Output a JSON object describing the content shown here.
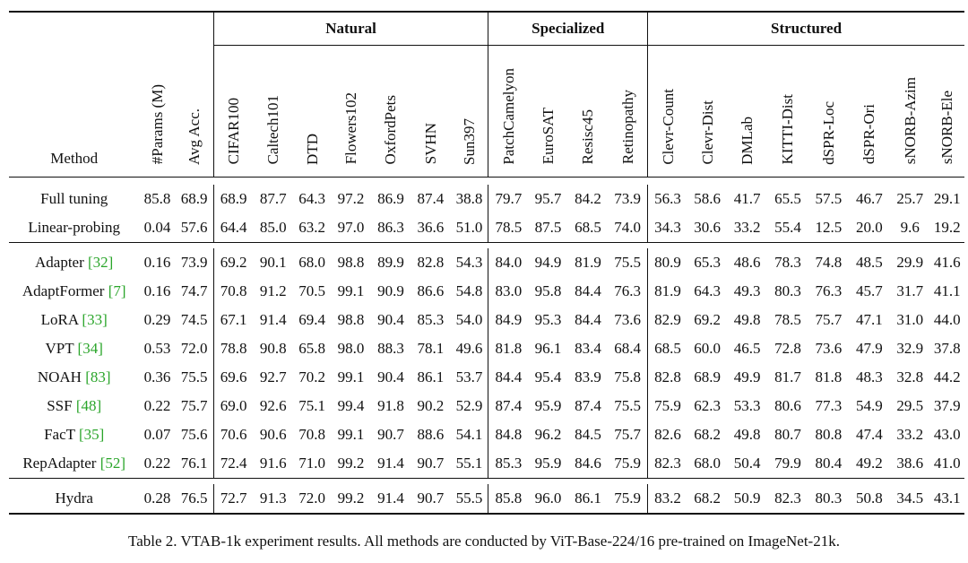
{
  "groups": {
    "natural": "Natural",
    "specialized": "Specialized",
    "structured": "Structured"
  },
  "columns": {
    "method": "Method",
    "params": "#Params (M)",
    "avg": "Avg Acc.",
    "datasets": [
      "CIFAR100",
      "Caltech101",
      "DTD",
      "Flowers102",
      "OxfordPets",
      "SVHN",
      "Sun397",
      "PatchCamelyon",
      "EuroSAT",
      "Resisc45",
      "Retinopathy",
      "Clevr-Count",
      "Clevr-Dist",
      "DMLab",
      "KITTI-Dist",
      "dSPR-Loc",
      "dSPR-Ori",
      "sNORB-Azim",
      "sNORB-Ele"
    ]
  },
  "baselines": [
    {
      "name": "Full tuning",
      "cite": "",
      "cells": [
        "85.8",
        "68.9",
        "68.9",
        "87.7",
        "64.3",
        "97.2",
        "86.9",
        "87.4",
        "38.8",
        "79.7",
        "95.7",
        "84.2",
        "73.9",
        "56.3",
        "58.6",
        "41.7",
        "65.5",
        "57.5",
        "46.7",
        "25.7",
        "29.1"
      ],
      "bold": []
    },
    {
      "name": "Linear-probing",
      "cite": "",
      "cells": [
        "0.04",
        "57.6",
        "64.4",
        "85.0",
        "63.2",
        "97.0",
        "86.3",
        "36.6",
        "51.0",
        "78.5",
        "87.5",
        "68.5",
        "74.0",
        "34.3",
        "30.6",
        "33.2",
        "55.4",
        "12.5",
        "20.0",
        "9.6",
        "19.2"
      ],
      "bold": []
    }
  ],
  "methods": [
    {
      "name": "Adapter ",
      "cite": "[32]",
      "cells": [
        "0.16",
        "73.9",
        "69.2",
        "90.1",
        "68.0",
        "98.8",
        "89.9",
        "82.8",
        "54.3",
        "84.0",
        "94.9",
        "81.9",
        "75.5",
        "80.9",
        "65.3",
        "48.6",
        "78.3",
        "74.8",
        "48.5",
        "29.9",
        "41.6"
      ],
      "bold": []
    },
    {
      "name": "AdaptFormer ",
      "cite": "[7]",
      "cells": [
        "0.16",
        "74.7",
        "70.8",
        "91.2",
        "70.5",
        "99.1",
        "90.9",
        "86.6",
        "54.8",
        "83.0",
        "95.8",
        "84.4",
        "76.3",
        "81.9",
        "64.3",
        "49.3",
        "80.3",
        "76.3",
        "45.7",
        "31.7",
        "41.1"
      ],
      "bold": [
        12
      ]
    },
    {
      "name": "LoRA ",
      "cite": "[33]",
      "cells": [
        "0.29",
        "74.5",
        "67.1",
        "91.4",
        "69.4",
        "98.8",
        "90.4",
        "85.3",
        "54.0",
        "84.9",
        "95.3",
        "84.4",
        "73.6",
        "82.9",
        "69.2",
        "49.8",
        "78.5",
        "75.7",
        "47.1",
        "31.0",
        "44.0"
      ],
      "bold": [
        14
      ]
    },
    {
      "name": "VPT ",
      "cite": "[34]",
      "cells": [
        "0.53",
        "72.0",
        "78.8",
        "90.8",
        "65.8",
        "98.0",
        "88.3",
        "78.1",
        "49.6",
        "81.8",
        "96.1",
        "83.4",
        "68.4",
        "68.5",
        "60.0",
        "46.5",
        "72.8",
        "73.6",
        "47.9",
        "32.9",
        "37.8"
      ],
      "bold": [
        2
      ]
    },
    {
      "name": "NOAH ",
      "cite": "[83]",
      "cells": [
        "0.36",
        "75.5",
        "69.6",
        "92.7",
        "70.2",
        "99.1",
        "90.4",
        "86.1",
        "53.7",
        "84.4",
        "95.4",
        "83.9",
        "75.8",
        "82.8",
        "68.9",
        "49.9",
        "81.7",
        "81.8",
        "48.3",
        "32.8",
        "44.2"
      ],
      "bold": [
        3,
        17,
        20
      ]
    },
    {
      "name": "SSF ",
      "cite": "[48]",
      "cells": [
        "0.22",
        "75.7",
        "69.0",
        "92.6",
        "75.1",
        "99.4",
        "91.8",
        "90.2",
        "52.9",
        "87.4",
        "95.9",
        "87.4",
        "75.5",
        "75.9",
        "62.3",
        "53.3",
        "80.6",
        "77.3",
        "54.9",
        "29.5",
        "37.9"
      ],
      "bold": [
        4,
        5,
        6,
        9,
        11,
        15,
        18
      ]
    },
    {
      "name": "FacT ",
      "cite": "[35]",
      "cells": [
        "0.07",
        "75.6",
        "70.6",
        "90.6",
        "70.8",
        "99.1",
        "90.7",
        "88.6",
        "54.1",
        "84.8",
        "96.2",
        "84.5",
        "75.7",
        "82.6",
        "68.2",
        "49.8",
        "80.7",
        "80.8",
        "47.4",
        "33.2",
        "43.0"
      ],
      "bold": [
        10
      ]
    },
    {
      "name": "RepAdapter ",
      "cite": "[52]",
      "cells": [
        "0.22",
        "76.1",
        "72.4",
        "91.6",
        "71.0",
        "99.2",
        "91.4",
        "90.7",
        "55.1",
        "85.3",
        "95.9",
        "84.6",
        "75.9",
        "82.3",
        "68.0",
        "50.4",
        "79.9",
        "80.4",
        "49.2",
        "38.6",
        "41.0"
      ],
      "bold": [
        7,
        19
      ]
    }
  ],
  "ours": [
    {
      "name": "Hydra",
      "cite": "",
      "cells": [
        "0.28",
        "76.5",
        "72.7",
        "91.3",
        "72.0",
        "99.2",
        "91.4",
        "90.7",
        "55.5",
        "85.8",
        "96.0",
        "86.1",
        "75.9",
        "83.2",
        "68.2",
        "50.9",
        "82.3",
        "80.3",
        "50.8",
        "34.5",
        "43.1"
      ],
      "bold": [
        1,
        7,
        8,
        13,
        16
      ]
    }
  ],
  "caption": "Table 2. VTAB-1k experiment results. All methods are conducted by ViT-Base-224/16 pre-trained on ImageNet-21k."
}
